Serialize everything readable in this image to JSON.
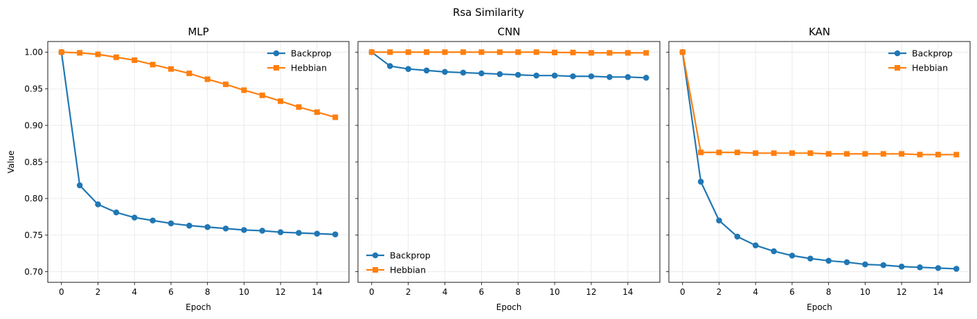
{
  "figure": {
    "title": "Rsa Similarity",
    "colors": {
      "backprop": "#1f77b4",
      "hebbian": "#ff7f0e",
      "grid": "#e6e6e6",
      "axes": "#000000"
    }
  },
  "chart_data": [
    {
      "type": "line",
      "title": "MLP",
      "xlabel": "Epoch",
      "ylabel": "Value",
      "xlim": [
        -0.75,
        15.75
      ],
      "ylim": [
        0.6855,
        1.0145
      ],
      "xticks": [
        0,
        2,
        4,
        6,
        8,
        10,
        12,
        14
      ],
      "yticks": [
        0.7,
        0.75,
        0.8,
        0.85,
        0.9,
        0.95,
        1.0
      ],
      "ytick_labels": [
        "0.70",
        "0.75",
        "0.80",
        "0.85",
        "0.90",
        "0.95",
        "1.00"
      ],
      "show_yticklabels": true,
      "grid": true,
      "legend_position": "top-right",
      "x": [
        0,
        1,
        2,
        3,
        4,
        5,
        6,
        7,
        8,
        9,
        10,
        11,
        12,
        13,
        14,
        15
      ],
      "series": [
        {
          "name": "Backprop",
          "marker": "circle",
          "color": "#1f77b4",
          "values": [
            1.0,
            0.818,
            0.792,
            0.781,
            0.774,
            0.77,
            0.766,
            0.763,
            0.761,
            0.759,
            0.757,
            0.756,
            0.754,
            0.753,
            0.752,
            0.751
          ]
        },
        {
          "name": "Hebbian",
          "marker": "square",
          "color": "#ff7f0e",
          "values": [
            1.0,
            0.999,
            0.997,
            0.993,
            0.989,
            0.983,
            0.977,
            0.971,
            0.963,
            0.956,
            0.948,
            0.941,
            0.933,
            0.925,
            0.918,
            0.911
          ]
        }
      ]
    },
    {
      "type": "line",
      "title": "CNN",
      "xlabel": "Epoch",
      "ylabel": "",
      "xlim": [
        -0.75,
        15.75
      ],
      "ylim": [
        0.6855,
        1.0145
      ],
      "xticks": [
        0,
        2,
        4,
        6,
        8,
        10,
        12,
        14
      ],
      "yticks": [
        0.7,
        0.75,
        0.8,
        0.85,
        0.9,
        0.95,
        1.0
      ],
      "ytick_labels": [
        "",
        "",
        "",
        "",
        "",
        "",
        ""
      ],
      "show_yticklabels": false,
      "grid": true,
      "legend_position": "bottom-left",
      "x": [
        0,
        1,
        2,
        3,
        4,
        5,
        6,
        7,
        8,
        9,
        10,
        11,
        12,
        13,
        14,
        15
      ],
      "series": [
        {
          "name": "Backprop",
          "marker": "circle",
          "color": "#1f77b4",
          "values": [
            1.0,
            0.981,
            0.977,
            0.975,
            0.973,
            0.972,
            0.971,
            0.97,
            0.969,
            0.968,
            0.968,
            0.967,
            0.967,
            0.966,
            0.966,
            0.965
          ]
        },
        {
          "name": "Hebbian",
          "marker": "square",
          "color": "#ff7f0e",
          "values": [
            1.0,
            1.0,
            1.0,
            1.0,
            1.0,
            1.0,
            1.0,
            1.0,
            1.0,
            1.0,
            0.9995,
            0.9995,
            0.999,
            0.999,
            0.999,
            0.999
          ]
        }
      ]
    },
    {
      "type": "line",
      "title": "KAN",
      "xlabel": "Epoch",
      "ylabel": "",
      "xlim": [
        -0.75,
        15.75
      ],
      "ylim": [
        0.6855,
        1.0145
      ],
      "xticks": [
        0,
        2,
        4,
        6,
        8,
        10,
        12,
        14
      ],
      "yticks": [
        0.7,
        0.75,
        0.8,
        0.85,
        0.9,
        0.95,
        1.0
      ],
      "ytick_labels": [
        "",
        "",
        "",
        "",
        "",
        "",
        ""
      ],
      "show_yticklabels": false,
      "grid": true,
      "legend_position": "top-right",
      "x": [
        0,
        1,
        2,
        3,
        4,
        5,
        6,
        7,
        8,
        9,
        10,
        11,
        12,
        13,
        14,
        15
      ],
      "series": [
        {
          "name": "Backprop",
          "marker": "circle",
          "color": "#1f77b4",
          "values": [
            1.0,
            0.823,
            0.77,
            0.748,
            0.736,
            0.728,
            0.722,
            0.718,
            0.715,
            0.713,
            0.71,
            0.709,
            0.707,
            0.706,
            0.705,
            0.704
          ]
        },
        {
          "name": "Hebbian",
          "marker": "square",
          "color": "#ff7f0e",
          "values": [
            1.0,
            0.863,
            0.863,
            0.863,
            0.862,
            0.862,
            0.862,
            0.862,
            0.861,
            0.861,
            0.861,
            0.861,
            0.861,
            0.86,
            0.86,
            0.86
          ]
        }
      ]
    }
  ]
}
